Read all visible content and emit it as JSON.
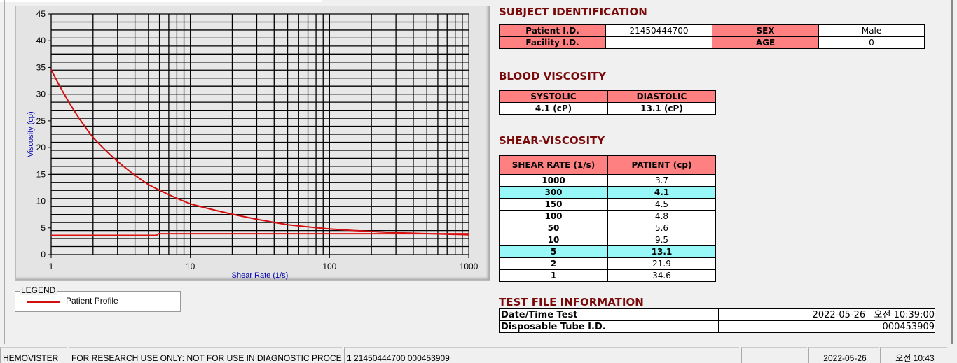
{
  "chart_data": {
    "type": "line",
    "xlabel": "Shear Rate (1/s)",
    "ylabel": "Viscosity (cp)",
    "xscale": "log",
    "xlim": [
      1,
      1000
    ],
    "ylim": [
      0,
      45
    ],
    "xticks": [
      "1",
      "10",
      "100",
      "1000"
    ],
    "yticks": [
      "0",
      "5",
      "10",
      "15",
      "20",
      "25",
      "30",
      "35",
      "40",
      "45"
    ],
    "grid": true,
    "series": [
      {
        "name": "Patient Profile",
        "color": "#d01010",
        "x": [
          1,
          2,
          5,
          10,
          50,
          100,
          150,
          300,
          1000
        ],
        "y": [
          34.6,
          21.9,
          13.1,
          9.5,
          5.6,
          4.8,
          4.5,
          4.1,
          3.7
        ]
      },
      {
        "color": "#e01010",
        "x": [
          1,
          5.7,
          5.9,
          1000
        ],
        "y": [
          3.6,
          3.6,
          3.9,
          3.9
        ]
      }
    ]
  },
  "legend": {
    "title": "LEGEND",
    "items": [
      {
        "label": "Patient Profile",
        "color": "#d01010"
      }
    ]
  },
  "subject": {
    "title": "SUBJECT IDENTIFICATION",
    "patient_id_label": "Patient I.D.",
    "patient_id": "21450444700",
    "sex_label": "SEX",
    "sex": "Male",
    "facility_label": "Facility I.D.",
    "facility": "",
    "age_label": "AGE",
    "age": "0"
  },
  "blood": {
    "title": "BLOOD VISCOSITY",
    "systolic_label": "SYSTOLIC",
    "diastolic_label": "DIASTOLIC",
    "systolic": "4.1 (cP)",
    "diastolic": "13.1 (cP)"
  },
  "shear": {
    "title": "SHEAR-VISCOSITY",
    "col1": "SHEAR RATE (1/s)",
    "col2": "PATIENT (cp)",
    "rows": [
      [
        "1000",
        "3.7"
      ],
      [
        "300",
        "4.1"
      ],
      [
        "150",
        "4.5"
      ],
      [
        "100",
        "4.8"
      ],
      [
        "50",
        "5.6"
      ],
      [
        "10",
        "9.5"
      ],
      [
        "5",
        "13.1"
      ],
      [
        "2",
        "21.9"
      ],
      [
        "1",
        "34.6"
      ]
    ],
    "highlight_color": "#98f8f8"
  },
  "testfile": {
    "title": "TEST FILE INFORMATION",
    "date_label": "Date/Time Test",
    "date": "2022-05-26   오전 10:39:00",
    "tube_label": "Disposable Tube I.D.",
    "tube": "000453909"
  },
  "status": {
    "app": "HEMOVISTER",
    "notice": "FOR RESEARCH USE ONLY: NOT FOR USE IN DIAGNOSTIC PROCEDURES",
    "record": "1  21450444700  000453909",
    "blank": "",
    "date": "2022-05-26",
    "time": "오전 10:43"
  }
}
